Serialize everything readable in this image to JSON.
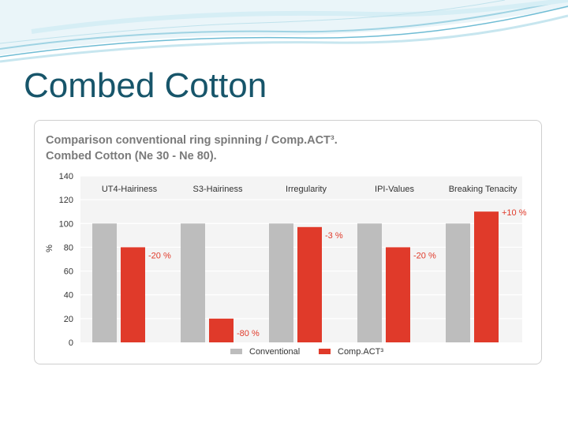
{
  "slide": {
    "title": "Combed Cotton"
  },
  "chart_data": {
    "type": "bar",
    "title": "Comparison conventional ring spinning / Comp.ACT³.",
    "subtitle": "Combed Cotton (Ne 30 - Ne 80).",
    "ylabel": "%",
    "xlabel": "",
    "ylim": [
      0,
      140
    ],
    "yticks": [
      0,
      20,
      40,
      60,
      80,
      100,
      120,
      140
    ],
    "grid": true,
    "legend_position": "bottom",
    "categories": [
      "UT4-Hairiness",
      "S3-Hairiness",
      "Irregularity",
      "IPI-Values",
      "Breaking Tenacity"
    ],
    "series": [
      {
        "name": "Conventional",
        "color": "#bdbdbd",
        "values": [
          100,
          100,
          100,
          100,
          100
        ]
      },
      {
        "name": "Comp.ACT³",
        "color": "#e03a2a",
        "values": [
          80,
          20,
          97,
          80,
          110
        ]
      }
    ],
    "data_labels": [
      "-20 %",
      "-80 %",
      "-3 %",
      "-20 %",
      "+10 %"
    ]
  }
}
